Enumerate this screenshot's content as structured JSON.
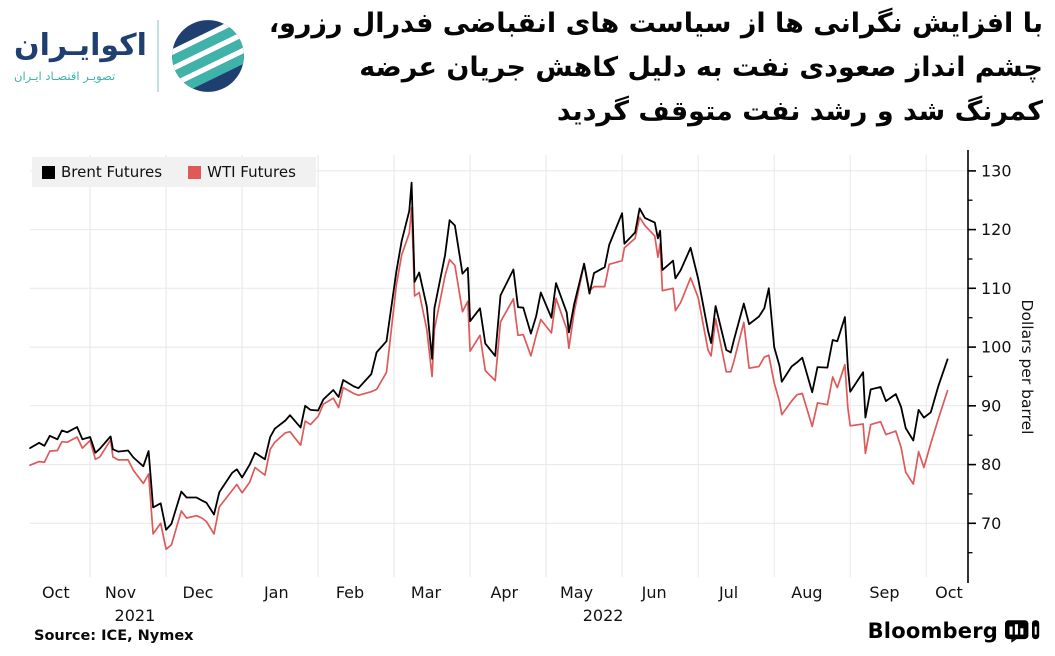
{
  "header": {
    "logo": {
      "brand": "اکوایـران",
      "tagline": "تصویـر اقتصـاد ایـران",
      "navy": "#1e3f70",
      "teal": "#3fb3aa"
    },
    "title_lines": [
      "با افزایش نگرانی ها از سیاست های انقباضی فدرال رزرو،",
      "چشم انداز صعودی نفت به دلیل کاهش جریان عرضه",
      "کمرنگ شد و رشد نفت متوقف گردید"
    ]
  },
  "footer": {
    "source": "Source: ICE, Nymex",
    "brand": "Bloomberg"
  },
  "chart_data": {
    "type": "line",
    "ylabel": "Dollars per barrel",
    "ylim": [
      61.2,
      132.7
    ],
    "yticks": [
      70,
      80,
      90,
      100,
      110,
      120,
      130
    ],
    "yticks_minor": [
      65,
      75,
      85,
      95,
      105,
      115,
      125
    ],
    "x_unit": "months since 2021-10-01",
    "xlim": [
      0.21,
      12.55
    ],
    "month_gridlines": [
      1,
      2,
      3,
      4,
      5,
      6,
      7,
      8,
      9,
      10,
      11,
      12
    ],
    "xticks": [
      {
        "label": "Oct",
        "m": 0.55
      },
      {
        "label": "Nov",
        "m": 1.4
      },
      {
        "label": "Dec",
        "m": 2.42
      },
      {
        "label": "Jan",
        "m": 3.45
      },
      {
        "label": "Feb",
        "m": 4.42
      },
      {
        "label": "Mar",
        "m": 5.42
      },
      {
        "label": "Apr",
        "m": 6.45
      },
      {
        "label": "May",
        "m": 7.4
      },
      {
        "label": "Jun",
        "m": 8.42
      },
      {
        "label": "Jul",
        "m": 9.4
      },
      {
        "label": "Aug",
        "m": 10.43
      },
      {
        "label": "Sep",
        "m": 11.45
      },
      {
        "label": "Oct",
        "m": 12.3
      }
    ],
    "year_ticks": [
      {
        "label": "2021",
        "m": 1.59
      },
      {
        "label": "2022",
        "m": 7.75
      }
    ],
    "grid": true,
    "legend_position": "top-left",
    "colors": {
      "grid": "#e7e7e7",
      "axis": "#000000",
      "text": "#111111"
    },
    "x": [
      0.21,
      0.33,
      0.4,
      0.47,
      0.57,
      0.63,
      0.7,
      0.83,
      0.9,
      1.0,
      1.07,
      1.13,
      1.27,
      1.3,
      1.37,
      1.5,
      1.57,
      1.7,
      1.77,
      1.83,
      1.93,
      2.0,
      2.07,
      2.2,
      2.27,
      2.4,
      2.47,
      2.53,
      2.63,
      2.7,
      2.87,
      2.93,
      3.0,
      3.1,
      3.17,
      3.3,
      3.37,
      3.43,
      3.57,
      3.63,
      3.77,
      3.83,
      3.9,
      4.0,
      4.07,
      4.2,
      4.27,
      4.33,
      4.47,
      4.53,
      4.7,
      4.77,
      4.9,
      5.03,
      5.1,
      5.2,
      5.23,
      5.27,
      5.33,
      5.43,
      5.5,
      5.53,
      5.67,
      5.73,
      5.8,
      5.9,
      5.97,
      6.0,
      6.13,
      6.2,
      6.33,
      6.4,
      6.57,
      6.63,
      6.7,
      6.8,
      6.87,
      6.93,
      7.07,
      7.13,
      7.27,
      7.3,
      7.37,
      7.5,
      7.57,
      7.63,
      7.77,
      7.83,
      8.0,
      8.03,
      8.17,
      8.23,
      8.3,
      8.43,
      8.47,
      8.5,
      8.53,
      8.67,
      8.7,
      8.77,
      8.9,
      9.0,
      9.13,
      9.17,
      9.23,
      9.37,
      9.43,
      9.47,
      9.6,
      9.67,
      9.8,
      9.87,
      9.93,
      10.0,
      10.07,
      10.1,
      10.23,
      10.3,
      10.37,
      10.5,
      10.57,
      10.7,
      10.77,
      10.83,
      10.93,
      10.97,
      11.0,
      11.17,
      11.2,
      11.27,
      11.4,
      11.47,
      11.6,
      11.67,
      11.73,
      11.83,
      11.9,
      11.97,
      12.06,
      12.16,
      12.28
    ],
    "series": [
      {
        "name": "Brent Futures",
        "color": "#000000",
        "width": 1.8,
        "values": [
          82.8,
          83.7,
          83.2,
          84.9,
          84.3,
          85.8,
          85.5,
          86.4,
          84.3,
          84.7,
          82.0,
          82.7,
          84.8,
          82.6,
          82.2,
          82.4,
          81.2,
          79.7,
          82.3,
          72.7,
          73.4,
          68.9,
          69.9,
          75.4,
          74.4,
          74.4,
          73.9,
          73.5,
          71.5,
          75.3,
          78.6,
          79.2,
          77.8,
          80.0,
          82.0,
          80.9,
          84.7,
          86.1,
          87.5,
          88.4,
          86.3,
          90.0,
          89.3,
          89.2,
          91.1,
          92.7,
          91.5,
          94.4,
          93.3,
          93.0,
          95.4,
          99.1,
          101.0,
          112.9,
          118.1,
          123.2,
          128.0,
          111.1,
          112.7,
          106.9,
          98.0,
          106.6,
          115.6,
          121.6,
          120.7,
          112.5,
          113.5,
          104.4,
          106.6,
          100.6,
          98.5,
          108.8,
          113.2,
          106.8,
          106.7,
          102.3,
          105.3,
          109.3,
          105.0,
          110.9,
          105.9,
          102.5,
          107.4,
          114.2,
          109.1,
          112.6,
          113.6,
          117.4,
          122.8,
          117.6,
          119.5,
          123.6,
          122.0,
          121.2,
          118.5,
          119.8,
          113.1,
          114.7,
          111.7,
          113.1,
          116.9,
          111.6,
          102.8,
          100.7,
          107.0,
          99.5,
          99.1,
          101.2,
          107.4,
          103.9,
          105.2,
          106.6,
          110.0,
          100.0,
          96.8,
          94.1,
          96.7,
          97.4,
          98.2,
          92.3,
          96.6,
          96.5,
          101.2,
          101.0,
          105.1,
          96.5,
          92.4,
          95.7,
          88.0,
          92.8,
          93.2,
          90.8,
          92.0,
          89.8,
          86.2,
          84.1,
          89.3,
          88.0,
          88.9,
          93.4,
          97.9
        ]
      },
      {
        "name": "WTI Futures",
        "color": "#de5a5a",
        "width": 1.7,
        "values": [
          79.9,
          80.5,
          80.4,
          82.3,
          82.4,
          83.9,
          83.8,
          84.7,
          82.8,
          84.1,
          80.9,
          81.3,
          84.2,
          81.3,
          80.8,
          80.8,
          79.0,
          76.8,
          78.4,
          68.2,
          70.0,
          65.6,
          66.3,
          72.1,
          70.9,
          71.3,
          70.9,
          70.3,
          68.2,
          72.8,
          75.6,
          76.6,
          75.2,
          77.0,
          79.5,
          78.2,
          82.6,
          83.8,
          85.4,
          85.6,
          83.3,
          87.4,
          86.8,
          88.2,
          90.3,
          91.3,
          89.7,
          93.1,
          92.1,
          91.8,
          92.4,
          92.8,
          95.7,
          110.6,
          115.7,
          119.4,
          123.7,
          108.7,
          109.3,
          103.0,
          95.0,
          103.0,
          112.1,
          114.9,
          113.9,
          106.0,
          107.8,
          99.3,
          102.0,
          96.0,
          94.3,
          104.3,
          108.2,
          102.0,
          102.1,
          98.5,
          102.0,
          104.7,
          102.4,
          108.3,
          103.1,
          99.8,
          106.1,
          114.2,
          109.6,
          110.3,
          110.3,
          114.1,
          114.7,
          116.9,
          118.5,
          122.1,
          120.7,
          118.9,
          115.3,
          117.6,
          109.6,
          110.0,
          106.2,
          107.6,
          111.8,
          108.4,
          99.5,
          98.5,
          104.8,
          95.8,
          95.8,
          97.6,
          104.2,
          96.4,
          96.7,
          98.3,
          98.6,
          93.9,
          90.7,
          88.5,
          90.8,
          91.9,
          92.1,
          86.5,
          90.5,
          90.2,
          94.9,
          93.1,
          97.0,
          89.6,
          86.6,
          86.9,
          81.9,
          86.8,
          87.3,
          85.1,
          85.7,
          82.9,
          78.7,
          76.7,
          82.2,
          79.5,
          83.6,
          87.8,
          92.6
        ]
      }
    ]
  }
}
